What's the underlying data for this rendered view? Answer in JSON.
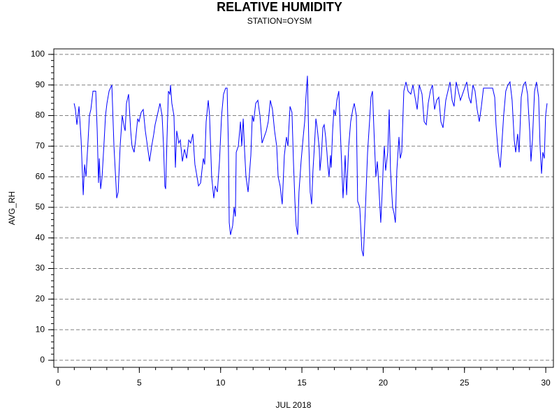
{
  "chart_data": {
    "type": "line",
    "title": "RELATIVE HUMIDITY",
    "subtitle": "STATION=OYSM",
    "x_label": "JUL 2018",
    "y_label": "AVG_RH",
    "color": "#0000ff",
    "grid": true,
    "xlim": [
      -0.26,
      30.47
    ],
    "ylim": [
      -2.3,
      101.8
    ],
    "xticks": [
      0,
      5,
      10,
      15,
      20,
      25,
      30
    ],
    "yticks": [
      0,
      10,
      20,
      30,
      40,
      50,
      60,
      70,
      80,
      90,
      100
    ],
    "xminor_ticks": [
      0,
      1,
      2,
      3,
      4,
      5,
      6,
      7,
      8,
      9,
      10,
      11,
      12,
      13,
      14,
      15,
      16,
      17,
      18,
      19,
      20,
      21,
      22,
      23,
      24,
      25,
      26,
      27,
      28,
      29,
      30
    ],
    "yminor_ticks": [
      0,
      2,
      4,
      6,
      8,
      10,
      12,
      14,
      16,
      18,
      20,
      22,
      24,
      26,
      28,
      30,
      32,
      34,
      36,
      38,
      40,
      42,
      44,
      46,
      48,
      50,
      52,
      54,
      56,
      58,
      60,
      62,
      64,
      66,
      68,
      70,
      72,
      74,
      76,
      78,
      80,
      82,
      84,
      86,
      88,
      90,
      92,
      94,
      96,
      98,
      100
    ],
    "x": [
      0.99,
      1.07,
      1.16,
      1.29,
      1.42,
      1.55,
      1.63,
      1.72,
      1.85,
      1.93,
      2.02,
      2.15,
      2.32,
      2.41,
      2.49,
      2.54,
      2.62,
      2.71,
      2.84,
      2.92,
      3.01,
      3.14,
      3.31,
      3.44,
      3.61,
      3.7,
      3.82,
      3.95,
      4.08,
      4.13,
      4.21,
      4.34,
      4.47,
      4.55,
      4.68,
      4.77,
      4.9,
      4.98,
      5.11,
      5.24,
      5.37,
      5.5,
      5.63,
      5.76,
      5.89,
      5.97,
      6.1,
      6.27,
      6.4,
      6.49,
      6.57,
      6.62,
      6.7,
      6.79,
      6.88,
      6.92,
      7.0,
      7.13,
      7.22,
      7.3,
      7.43,
      7.52,
      7.65,
      7.78,
      7.91,
      8.04,
      8.16,
      8.29,
      8.42,
      8.55,
      8.64,
      8.77,
      8.85,
      8.94,
      9.02,
      9.11,
      9.24,
      9.32,
      9.45,
      9.58,
      9.67,
      9.8,
      9.93,
      10.06,
      10.18,
      10.31,
      10.4,
      10.48,
      10.53,
      10.61,
      10.74,
      10.83,
      10.91,
      10.96,
      11.09,
      11.22,
      11.3,
      11.39,
      11.47,
      11.56,
      11.69,
      11.86,
      11.95,
      12.03,
      12.16,
      12.29,
      12.42,
      12.55,
      12.68,
      12.81,
      12.93,
      13.06,
      13.19,
      13.32,
      13.45,
      13.54,
      13.66,
      13.79,
      13.92,
      14.05,
      14.14,
      14.27,
      14.39,
      14.48,
      14.57,
      14.65,
      14.74,
      14.82,
      14.95,
      15.08,
      15.17,
      15.25,
      15.34,
      15.43,
      15.51,
      15.6,
      15.68,
      15.77,
      15.86,
      15.94,
      15.98,
      16.07,
      16.11,
      16.2,
      16.29,
      16.37,
      16.46,
      16.54,
      16.59,
      16.67,
      16.76,
      16.8,
      16.89,
      16.97,
      17.06,
      17.15,
      17.27,
      17.4,
      17.53,
      17.66,
      17.75,
      17.88,
      18.0,
      18.13,
      18.22,
      18.35,
      18.43,
      18.56,
      18.69,
      18.78,
      18.91,
      19.04,
      19.16,
      19.25,
      19.34,
      19.47,
      19.55,
      19.64,
      19.72,
      19.85,
      19.94,
      20.02,
      20.07,
      20.15,
      20.28,
      20.37,
      20.45,
      20.58,
      20.67,
      20.75,
      20.84,
      20.97,
      21.05,
      21.14,
      21.27,
      21.4,
      21.53,
      21.7,
      21.83,
      21.96,
      22.09,
      22.22,
      22.39,
      22.52,
      22.65,
      22.77,
      22.9,
      23.03,
      23.16,
      23.29,
      23.42,
      23.55,
      23.68,
      23.85,
      23.98,
      24.11,
      24.24,
      24.36,
      24.49,
      24.62,
      24.75,
      24.88,
      25.01,
      25.14,
      25.27,
      25.4,
      25.52,
      25.65,
      25.78,
      25.91,
      26.04,
      26.17,
      26.43,
      26.73,
      26.86,
      26.94,
      27.07,
      27.2,
      27.29,
      27.41,
      27.54,
      27.67,
      27.8,
      27.93,
      28.06,
      28.15,
      28.27,
      28.36,
      28.49,
      28.62,
      28.75,
      28.88,
      29.01,
      29.09,
      29.18,
      29.31,
      29.43,
      29.56,
      29.65,
      29.74,
      29.82,
      29.91,
      29.99,
      30.08
    ],
    "values": [
      84,
      82,
      77,
      83,
      72,
      54,
      64,
      60,
      72,
      80,
      82,
      88,
      88,
      75,
      58,
      66,
      56,
      60,
      72,
      80,
      84,
      88,
      90,
      70,
      53,
      55,
      70,
      80,
      76,
      75,
      84,
      87,
      75,
      70,
      68,
      72,
      79,
      78,
      81,
      82,
      75,
      70,
      65,
      70,
      74,
      77,
      80,
      84,
      80,
      70,
      57,
      56,
      72,
      88,
      87,
      90,
      84,
      80,
      63,
      75,
      71,
      72,
      65,
      69,
      66,
      72,
      71,
      74,
      64,
      60,
      57,
      58,
      62,
      66,
      64,
      78,
      85,
      80,
      60,
      53,
      57,
      55,
      65,
      80,
      87,
      89,
      89,
      70,
      45,
      41,
      44,
      50,
      47,
      68,
      70,
      78,
      70,
      79,
      69,
      60,
      55,
      67,
      80,
      78,
      84,
      85,
      80,
      71,
      73,
      75,
      78,
      85,
      82,
      75,
      70,
      60,
      57,
      51,
      67,
      73,
      70,
      83,
      81,
      65,
      52,
      44,
      41,
      55,
      65,
      73,
      78,
      86,
      93,
      70,
      55,
      51,
      62,
      70,
      79,
      76,
      74,
      69,
      62,
      67,
      76,
      77,
      73,
      68,
      64,
      60,
      67,
      63,
      75,
      82,
      80,
      85,
      88,
      70,
      53,
      67,
      54,
      70,
      78,
      82,
      84,
      80,
      52,
      50,
      36,
      34,
      50,
      68,
      78,
      86,
      88,
      70,
      60,
      65,
      58,
      45,
      55,
      66,
      70,
      62,
      68,
      82,
      62,
      50,
      48,
      45,
      62,
      73,
      66,
      68,
      88,
      91,
      88,
      87,
      90,
      86,
      82,
      90,
      87,
      78,
      77,
      84,
      88,
      90,
      82,
      85,
      86,
      78,
      76,
      85,
      88,
      91,
      85,
      83,
      91,
      88,
      85,
      87,
      89,
      91,
      86,
      84,
      90,
      88,
      82,
      78,
      83,
      89,
      89,
      89,
      86,
      77,
      68,
      63,
      70,
      80,
      88,
      90,
      91,
      85,
      72,
      68,
      74,
      68,
      86,
      90,
      91,
      87,
      75,
      65,
      72,
      88,
      91,
      86,
      70,
      61,
      68,
      66,
      80,
      84
    ]
  }
}
